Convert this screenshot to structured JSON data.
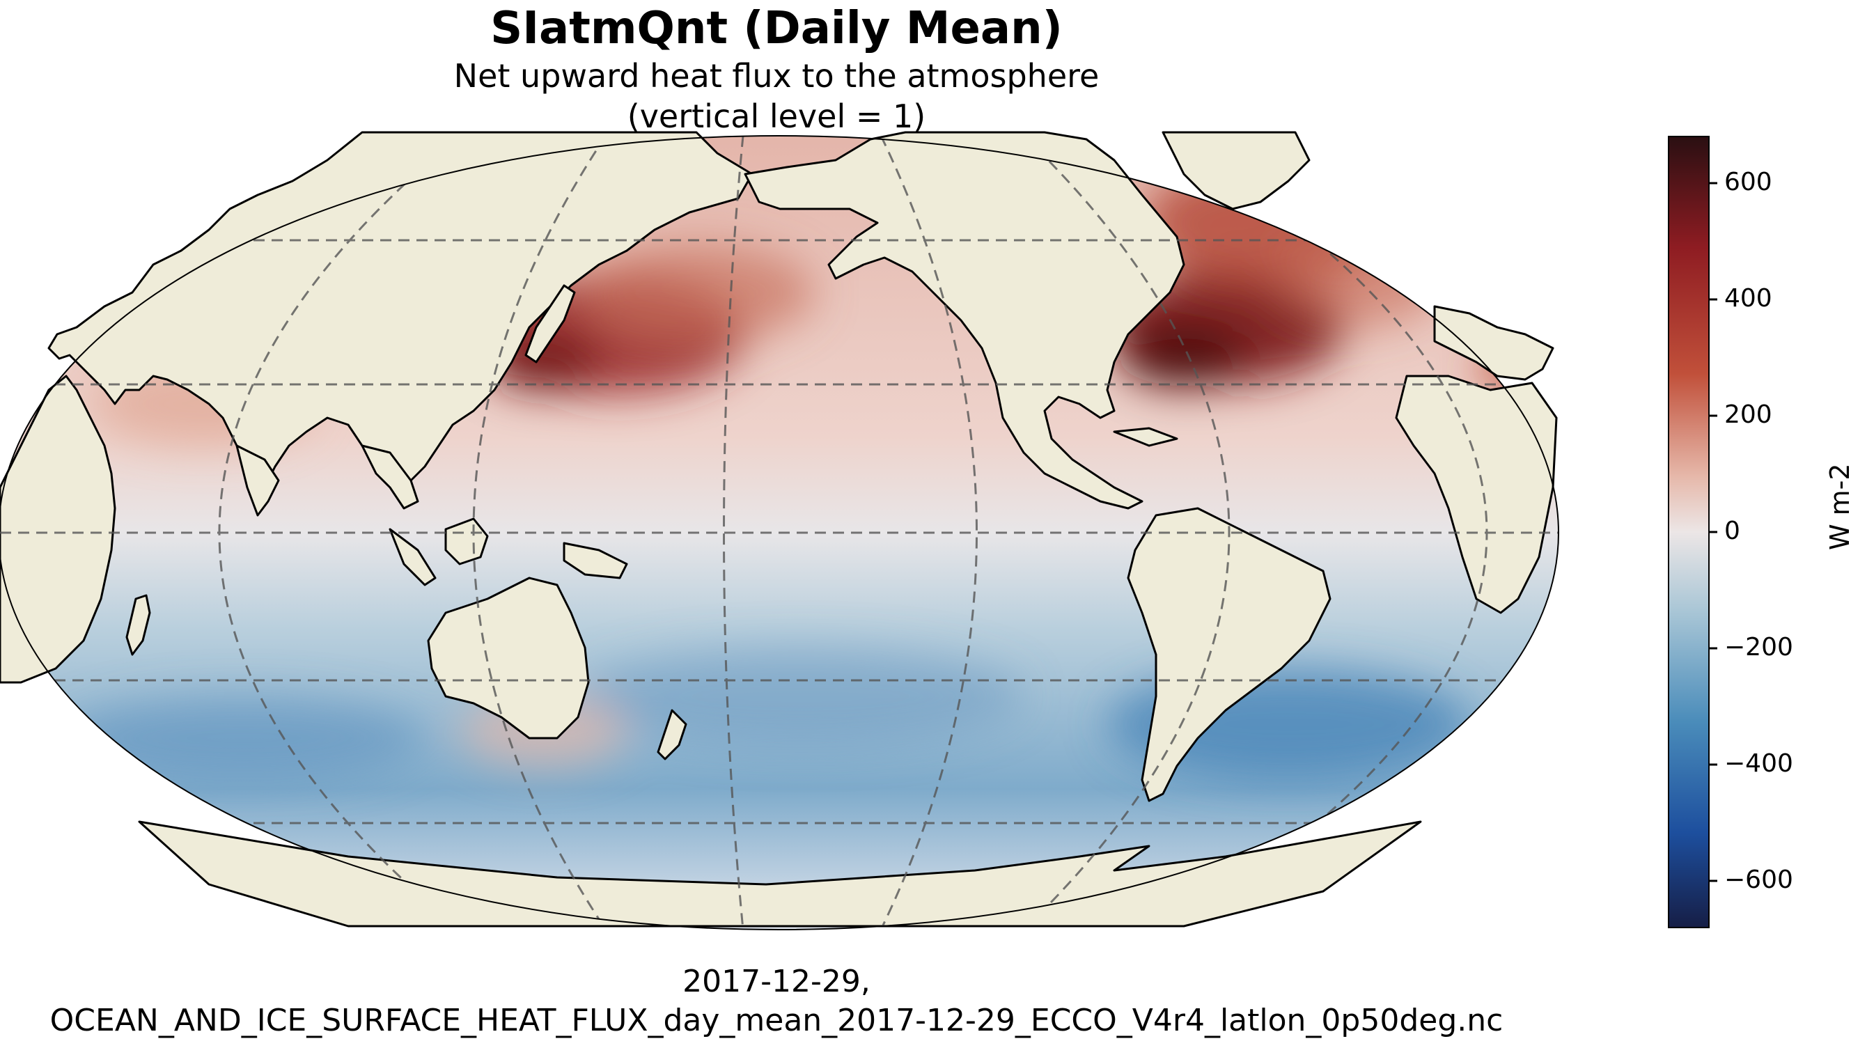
{
  "title": "SIatmQnt (Daily Mean)",
  "subtitle_line1": "Net upward heat flux to the atmosphere",
  "subtitle_line2": "(vertical level = 1)",
  "footer_line1": "2017-12-29,",
  "footer_line2": "OCEAN_AND_ICE_SURFACE_HEAT_FLUX_day_mean_2017-12-29_ECCO_V4r4_latlon_0p50deg.nc",
  "colorbar": {
    "label": "W m-2",
    "ticks": [
      "600",
      "400",
      "200",
      "0",
      "−200",
      "−400",
      "−600"
    ],
    "colors": [
      "#2a0f12",
      "#8e1c22",
      "#c1503a",
      "#e6b8aa",
      "#ece6e6",
      "#a9c6d6",
      "#4a8cba",
      "#1d4f9e",
      "#161e46"
    ]
  },
  "map": {
    "projection": "Robinson",
    "land_color": "#efecd9",
    "gridlines": "dashed"
  }
}
